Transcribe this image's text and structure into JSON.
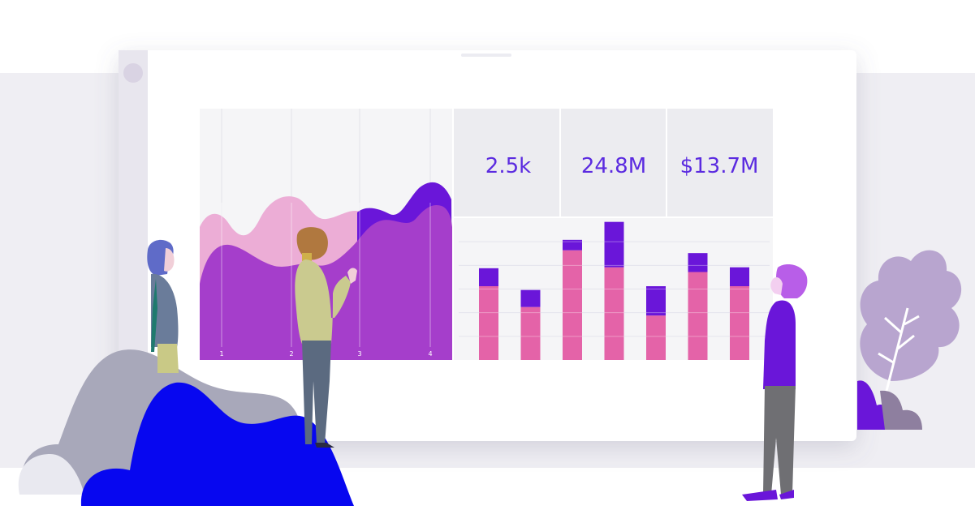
{
  "kpis": [
    {
      "value": "2.5k"
    },
    {
      "value": "24.8M"
    },
    {
      "value": "$13.7M"
    }
  ],
  "area_chart": {
    "x_ticks": [
      "1",
      "2",
      "3",
      "4"
    ]
  },
  "chart_data": {
    "type": "bar",
    "stacked": true,
    "categories": [
      "",
      "",
      "",
      "",
      "",
      "",
      ""
    ],
    "series": [
      {
        "values": [
          78,
          56,
          116,
          98,
          47,
          93,
          78
        ]
      },
      {
        "values": [
          19,
          18,
          11,
          48,
          31,
          20,
          20
        ]
      }
    ],
    "ylim": [
      0,
      150
    ],
    "grid": true
  },
  "colors": {
    "bar_bottom": "#e463a8",
    "bar_top": "#6a16d9",
    "area_front": "#a53ecb",
    "area_back": "#ecadd6",
    "accent_text": "#5b2be0",
    "blob": "#0707f0"
  },
  "icons": {
    "window_control": "circle-icon",
    "leaf": "leaf-icon"
  }
}
